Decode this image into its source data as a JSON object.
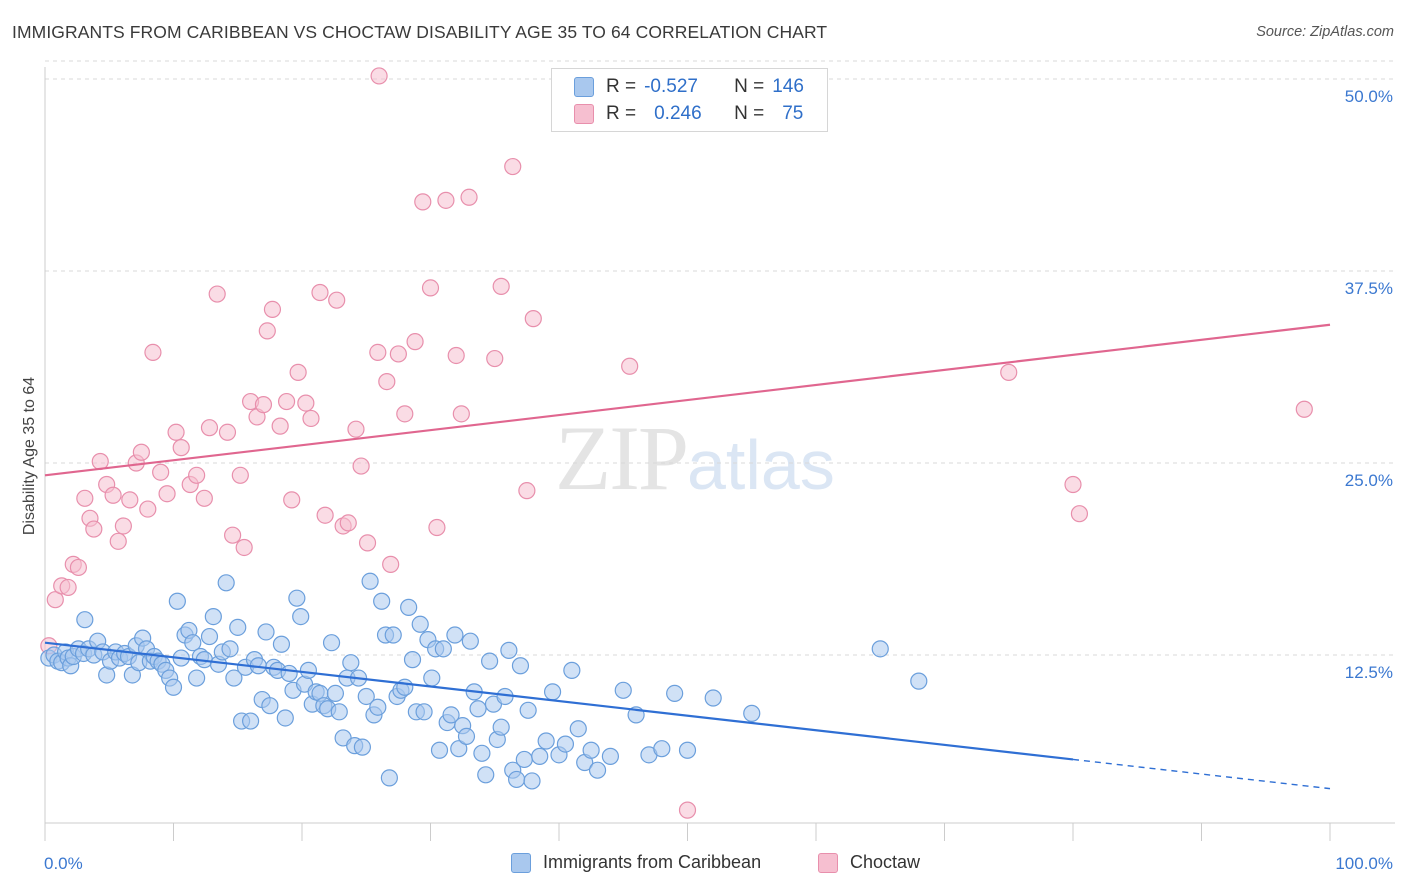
{
  "title": "IMMIGRANTS FROM CARIBBEAN VS CHOCTAW DISABILITY AGE 35 TO 64 CORRELATION CHART",
  "source": "Source: ZipAtlas.com",
  "watermark": {
    "zip": "ZIP",
    "atlas": "atlas"
  },
  "legend": {
    "rows": [
      {
        "r_label": "R =",
        "r_value": "-0.527",
        "n_label": "N =",
        "n_value": "146"
      },
      {
        "r_label": "R =",
        "r_value": "0.246",
        "n_label": "N =",
        "n_value": "75"
      }
    ]
  },
  "colors": {
    "blue_fill": "#a9c8ee",
    "blue_stroke": "#6b9fdc",
    "blue_line": "#2f6fd4",
    "pink_fill": "#f6bfd0",
    "pink_stroke": "#e88fac",
    "pink_line": "#e0668f",
    "axis_label": "#3b78d0",
    "grid": "#d8d8d8"
  },
  "chart_data": {
    "type": "scatter",
    "title": "IMMIGRANTS FROM CARIBBEAN VS CHOCTAW DISABILITY AGE 35 TO 64 CORRELATION CHART",
    "xlabel": "",
    "ylabel": "Disability Age 35 to 64",
    "xlim": [
      0,
      100
    ],
    "ylim": [
      0,
      51
    ],
    "x_tick_labels": [
      {
        "value": 0,
        "label": "0.0%"
      },
      {
        "value": 100,
        "label": "100.0%"
      }
    ],
    "y_tick_labels": [
      {
        "value": 12.5,
        "label": "12.5%"
      },
      {
        "value": 25.0,
        "label": "25.0%"
      },
      {
        "value": 37.5,
        "label": "37.5%"
      },
      {
        "value": 50.0,
        "label": "50.0%"
      }
    ],
    "grid": true,
    "legend_position": "top-center",
    "series": [
      {
        "name": "Immigrants from Caribbean",
        "color": "#a9c8ee",
        "trend": {
          "x": [
            0,
            80,
            100
          ],
          "y": [
            13.3,
            5.7,
            3.8
          ],
          "solid_until": 80
        },
        "points": [
          [
            0.3,
            12.3
          ],
          [
            0.7,
            12.5
          ],
          [
            1.0,
            12.1
          ],
          [
            1.3,
            12.0
          ],
          [
            1.6,
            12.7
          ],
          [
            1.8,
            12.3
          ],
          [
            2.0,
            11.8
          ],
          [
            2.2,
            12.4
          ],
          [
            2.6,
            12.9
          ],
          [
            3.0,
            12.6
          ],
          [
            3.1,
            14.8
          ],
          [
            3.4,
            12.9
          ],
          [
            3.8,
            12.5
          ],
          [
            4.1,
            13.4
          ],
          [
            4.5,
            12.7
          ],
          [
            4.8,
            11.2
          ],
          [
            5.1,
            12.1
          ],
          [
            5.5,
            12.7
          ],
          [
            5.8,
            12.3
          ],
          [
            6.2,
            12.6
          ],
          [
            6.5,
            12.4
          ],
          [
            6.8,
            11.2
          ],
          [
            7.1,
            13.1
          ],
          [
            7.3,
            12.0
          ],
          [
            7.6,
            13.6
          ],
          [
            7.9,
            12.9
          ],
          [
            8.2,
            12.1
          ],
          [
            8.5,
            12.4
          ],
          [
            8.8,
            12.1
          ],
          [
            9.1,
            11.9
          ],
          [
            9.4,
            11.5
          ],
          [
            9.7,
            11.0
          ],
          [
            10.0,
            10.4
          ],
          [
            10.3,
            16.0
          ],
          [
            10.6,
            12.3
          ],
          [
            10.9,
            13.8
          ],
          [
            11.2,
            14.1
          ],
          [
            11.5,
            13.3
          ],
          [
            11.8,
            11.0
          ],
          [
            12.1,
            12.4
          ],
          [
            12.4,
            12.2
          ],
          [
            12.8,
            13.7
          ],
          [
            13.1,
            15.0
          ],
          [
            13.5,
            11.9
          ],
          [
            13.8,
            12.7
          ],
          [
            14.1,
            17.2
          ],
          [
            14.4,
            12.9
          ],
          [
            14.7,
            11.0
          ],
          [
            15.0,
            14.3
          ],
          [
            15.3,
            8.2
          ],
          [
            15.6,
            11.7
          ],
          [
            16.0,
            8.2
          ],
          [
            16.3,
            12.2
          ],
          [
            16.6,
            11.8
          ],
          [
            16.9,
            9.6
          ],
          [
            17.2,
            14.0
          ],
          [
            17.5,
            9.2
          ],
          [
            17.8,
            11.7
          ],
          [
            18.1,
            11.5
          ],
          [
            18.4,
            13.2
          ],
          [
            18.7,
            8.4
          ],
          [
            19.0,
            11.3
          ],
          [
            19.3,
            10.2
          ],
          [
            19.6,
            16.2
          ],
          [
            19.9,
            15.0
          ],
          [
            20.2,
            10.6
          ],
          [
            20.5,
            11.5
          ],
          [
            20.8,
            9.3
          ],
          [
            21.1,
            10.1
          ],
          [
            21.4,
            10.0
          ],
          [
            21.7,
            9.2
          ],
          [
            22.0,
            9.0
          ],
          [
            22.3,
            13.3
          ],
          [
            22.6,
            10.0
          ],
          [
            22.9,
            8.8
          ],
          [
            23.2,
            7.1
          ],
          [
            23.5,
            11.0
          ],
          [
            23.8,
            12.0
          ],
          [
            24.1,
            6.6
          ],
          [
            24.4,
            11.0
          ],
          [
            24.7,
            6.5
          ],
          [
            25.0,
            9.8
          ],
          [
            25.3,
            17.3
          ],
          [
            25.6,
            8.6
          ],
          [
            25.9,
            9.1
          ],
          [
            26.2,
            16.0
          ],
          [
            26.5,
            13.8
          ],
          [
            26.8,
            4.5
          ],
          [
            27.1,
            13.8
          ],
          [
            27.4,
            9.8
          ],
          [
            27.7,
            10.2
          ],
          [
            28.0,
            10.4
          ],
          [
            28.3,
            15.6
          ],
          [
            28.6,
            12.2
          ],
          [
            28.9,
            8.8
          ],
          [
            29.2,
            14.5
          ],
          [
            29.5,
            8.8
          ],
          [
            29.8,
            13.5
          ],
          [
            30.1,
            11.0
          ],
          [
            30.4,
            12.9
          ],
          [
            30.7,
            6.3
          ],
          [
            31.0,
            12.9
          ],
          [
            31.3,
            8.1
          ],
          [
            31.6,
            8.6
          ],
          [
            31.9,
            13.8
          ],
          [
            32.2,
            6.4
          ],
          [
            32.5,
            7.9
          ],
          [
            32.8,
            7.2
          ],
          [
            33.1,
            13.4
          ],
          [
            33.4,
            10.1
          ],
          [
            33.7,
            9.0
          ],
          [
            34.0,
            6.1
          ],
          [
            34.3,
            4.7
          ],
          [
            34.6,
            12.1
          ],
          [
            34.9,
            9.3
          ],
          [
            35.2,
            7.0
          ],
          [
            35.5,
            7.8
          ],
          [
            35.8,
            9.8
          ],
          [
            36.1,
            12.8
          ],
          [
            36.4,
            5.0
          ],
          [
            36.7,
            4.4
          ],
          [
            37.0,
            11.8
          ],
          [
            37.3,
            5.7
          ],
          [
            37.6,
            8.9
          ],
          [
            37.9,
            4.3
          ],
          [
            38.5,
            5.9
          ],
          [
            39.0,
            6.9
          ],
          [
            39.5,
            10.1
          ],
          [
            40.0,
            6.0
          ],
          [
            40.5,
            6.7
          ],
          [
            41.0,
            11.5
          ],
          [
            41.5,
            7.7
          ],
          [
            42.0,
            5.5
          ],
          [
            42.5,
            6.3
          ],
          [
            43.0,
            5.0
          ],
          [
            44.0,
            5.9
          ],
          [
            45.0,
            10.2
          ],
          [
            46.0,
            8.6
          ],
          [
            47.0,
            6.0
          ],
          [
            48.0,
            6.4
          ],
          [
            49.0,
            10.0
          ],
          [
            50.0,
            6.3
          ],
          [
            52.0,
            9.7
          ],
          [
            55.0,
            8.7
          ],
          [
            65.0,
            12.9
          ],
          [
            68.0,
            10.8
          ]
        ]
      },
      {
        "name": "Choctaw",
        "color": "#f6bfd0",
        "trend": {
          "x": [
            0,
            100
          ],
          "y": [
            24.2,
            34.0
          ]
        },
        "points": [
          [
            0.3,
            13.1
          ],
          [
            0.8,
            16.1
          ],
          [
            1.3,
            17.0
          ],
          [
            1.8,
            16.9
          ],
          [
            2.2,
            18.4
          ],
          [
            2.6,
            18.2
          ],
          [
            3.1,
            22.7
          ],
          [
            3.5,
            21.4
          ],
          [
            3.8,
            20.7
          ],
          [
            4.3,
            25.1
          ],
          [
            4.8,
            23.6
          ],
          [
            5.3,
            22.9
          ],
          [
            5.7,
            19.9
          ],
          [
            6.1,
            20.9
          ],
          [
            6.6,
            22.6
          ],
          [
            7.1,
            25.0
          ],
          [
            7.5,
            25.7
          ],
          [
            8.0,
            22.0
          ],
          [
            8.4,
            32.2
          ],
          [
            9.0,
            24.4
          ],
          [
            9.5,
            23.0
          ],
          [
            10.2,
            27.0
          ],
          [
            10.6,
            26.0
          ],
          [
            11.3,
            23.6
          ],
          [
            11.8,
            24.2
          ],
          [
            12.4,
            22.7
          ],
          [
            12.8,
            27.3
          ],
          [
            13.4,
            36.0
          ],
          [
            14.2,
            27.0
          ],
          [
            14.6,
            20.3
          ],
          [
            15.2,
            24.2
          ],
          [
            15.5,
            19.5
          ],
          [
            16.0,
            29.0
          ],
          [
            16.5,
            28.0
          ],
          [
            17.0,
            28.8
          ],
          [
            17.3,
            33.6
          ],
          [
            17.7,
            35.0
          ],
          [
            18.3,
            27.4
          ],
          [
            18.8,
            29.0
          ],
          [
            19.2,
            22.6
          ],
          [
            19.7,
            30.9
          ],
          [
            20.3,
            28.9
          ],
          [
            20.7,
            27.9
          ],
          [
            21.4,
            36.1
          ],
          [
            21.8,
            21.6
          ],
          [
            22.7,
            35.6
          ],
          [
            23.2,
            20.9
          ],
          [
            23.6,
            21.1
          ],
          [
            24.2,
            27.2
          ],
          [
            24.6,
            24.8
          ],
          [
            25.1,
            19.8
          ],
          [
            25.9,
            32.2
          ],
          [
            26.6,
            30.3
          ],
          [
            26.9,
            18.4
          ],
          [
            27.5,
            32.1
          ],
          [
            28.0,
            28.2
          ],
          [
            28.8,
            32.9
          ],
          [
            29.4,
            42.0
          ],
          [
            30.0,
            36.4
          ],
          [
            30.5,
            20.8
          ],
          [
            31.2,
            42.1
          ],
          [
            32.0,
            32.0
          ],
          [
            32.4,
            28.2
          ],
          [
            33.0,
            42.3
          ],
          [
            35.0,
            31.8
          ],
          [
            35.5,
            36.5
          ],
          [
            36.4,
            44.3
          ],
          [
            37.5,
            23.2
          ],
          [
            38.0,
            34.4
          ],
          [
            45.5,
            31.3
          ],
          [
            50.0,
            2.4
          ],
          [
            75.0,
            30.9
          ],
          [
            80.0,
            23.6
          ],
          [
            80.5,
            21.7
          ],
          [
            98.0,
            28.5
          ],
          [
            26.0,
            50.2
          ]
        ]
      }
    ]
  },
  "bottom_legend": [
    {
      "label": "Immigrants from Caribbean"
    },
    {
      "label": "Choctaw"
    }
  ]
}
